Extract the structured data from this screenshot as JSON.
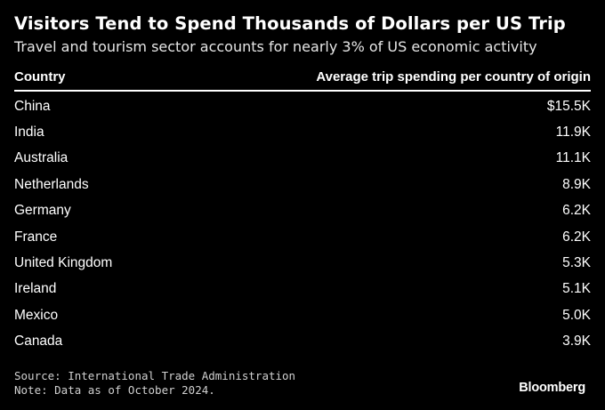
{
  "chart_data": {
    "type": "table",
    "title": "Visitors Tend to Spend Thousands of Dollars per US Trip",
    "subtitle": "Travel and tourism sector accounts for nearly 3% of US economic activity",
    "columns": [
      "Country",
      "Average trip spending per country of origin"
    ],
    "rows": [
      {
        "country": "China",
        "value": "$15.5K"
      },
      {
        "country": "India",
        "value": "11.9K"
      },
      {
        "country": "Australia",
        "value": "11.1K"
      },
      {
        "country": "Netherlands",
        "value": "8.9K"
      },
      {
        "country": "Germany",
        "value": "6.2K"
      },
      {
        "country": "France",
        "value": "6.2K"
      },
      {
        "country": "United Kingdom",
        "value": "5.3K"
      },
      {
        "country": "Ireland",
        "value": "5.1K"
      },
      {
        "country": "Mexico",
        "value": "5.0K"
      },
      {
        "country": "Canada",
        "value": "3.9K"
      }
    ],
    "source": "Source: International Trade Administration",
    "note": "Note: Data as of October 2024."
  },
  "brand": "Bloomberg",
  "colors": {
    "background": "#000000",
    "text": "#ffffff"
  }
}
